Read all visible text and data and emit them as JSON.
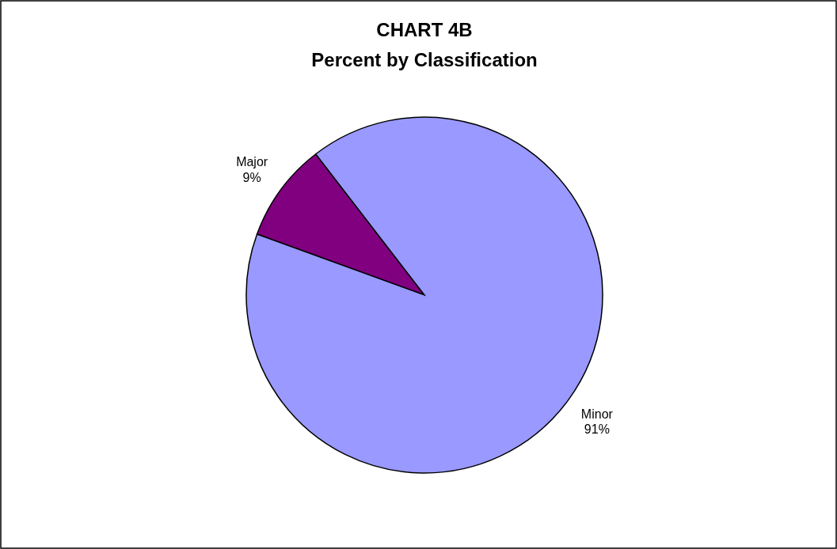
{
  "chart_data": {
    "type": "pie",
    "title": "CHART 4B\nPercent by Classification",
    "categories": [
      "Major",
      "Minor"
    ],
    "values": [
      9,
      91
    ],
    "colors": [
      "#800080",
      "#9999ff"
    ],
    "value_labels": [
      "9%",
      "91%"
    ]
  }
}
